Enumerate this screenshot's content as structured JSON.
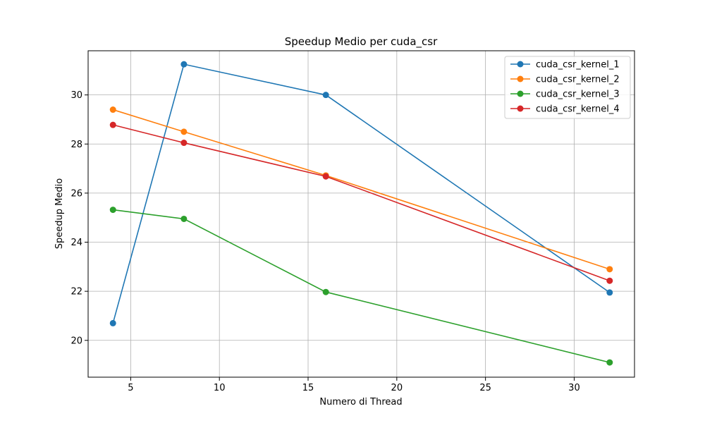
{
  "chart_data": {
    "type": "line",
    "title": "Speedup Medio per cuda_csr",
    "xlabel": "Numero di Thread",
    "ylabel": "Speedup Medio",
    "x": [
      4,
      8,
      16,
      32
    ],
    "xlim": [
      2.6,
      33.4
    ],
    "ylim": [
      18.5,
      31.8
    ],
    "xticks": [
      5,
      10,
      15,
      20,
      25,
      30
    ],
    "yticks": [
      20,
      22,
      24,
      26,
      28,
      30
    ],
    "grid": true,
    "legend_position": "top-right",
    "series": [
      {
        "name": "cuda_csr_kernel_1",
        "color": "#1f77b4",
        "values": [
          20.7,
          31.25,
          30.0,
          21.95
        ]
      },
      {
        "name": "cuda_csr_kernel_2",
        "color": "#ff7f0e",
        "values": [
          29.4,
          28.5,
          26.72,
          22.9
        ]
      },
      {
        "name": "cuda_csr_kernel_3",
        "color": "#2ca02c",
        "values": [
          25.32,
          24.95,
          21.97,
          19.1
        ]
      },
      {
        "name": "cuda_csr_kernel_4",
        "color": "#d62728",
        "values": [
          28.78,
          28.05,
          26.68,
          22.43
        ]
      }
    ]
  }
}
